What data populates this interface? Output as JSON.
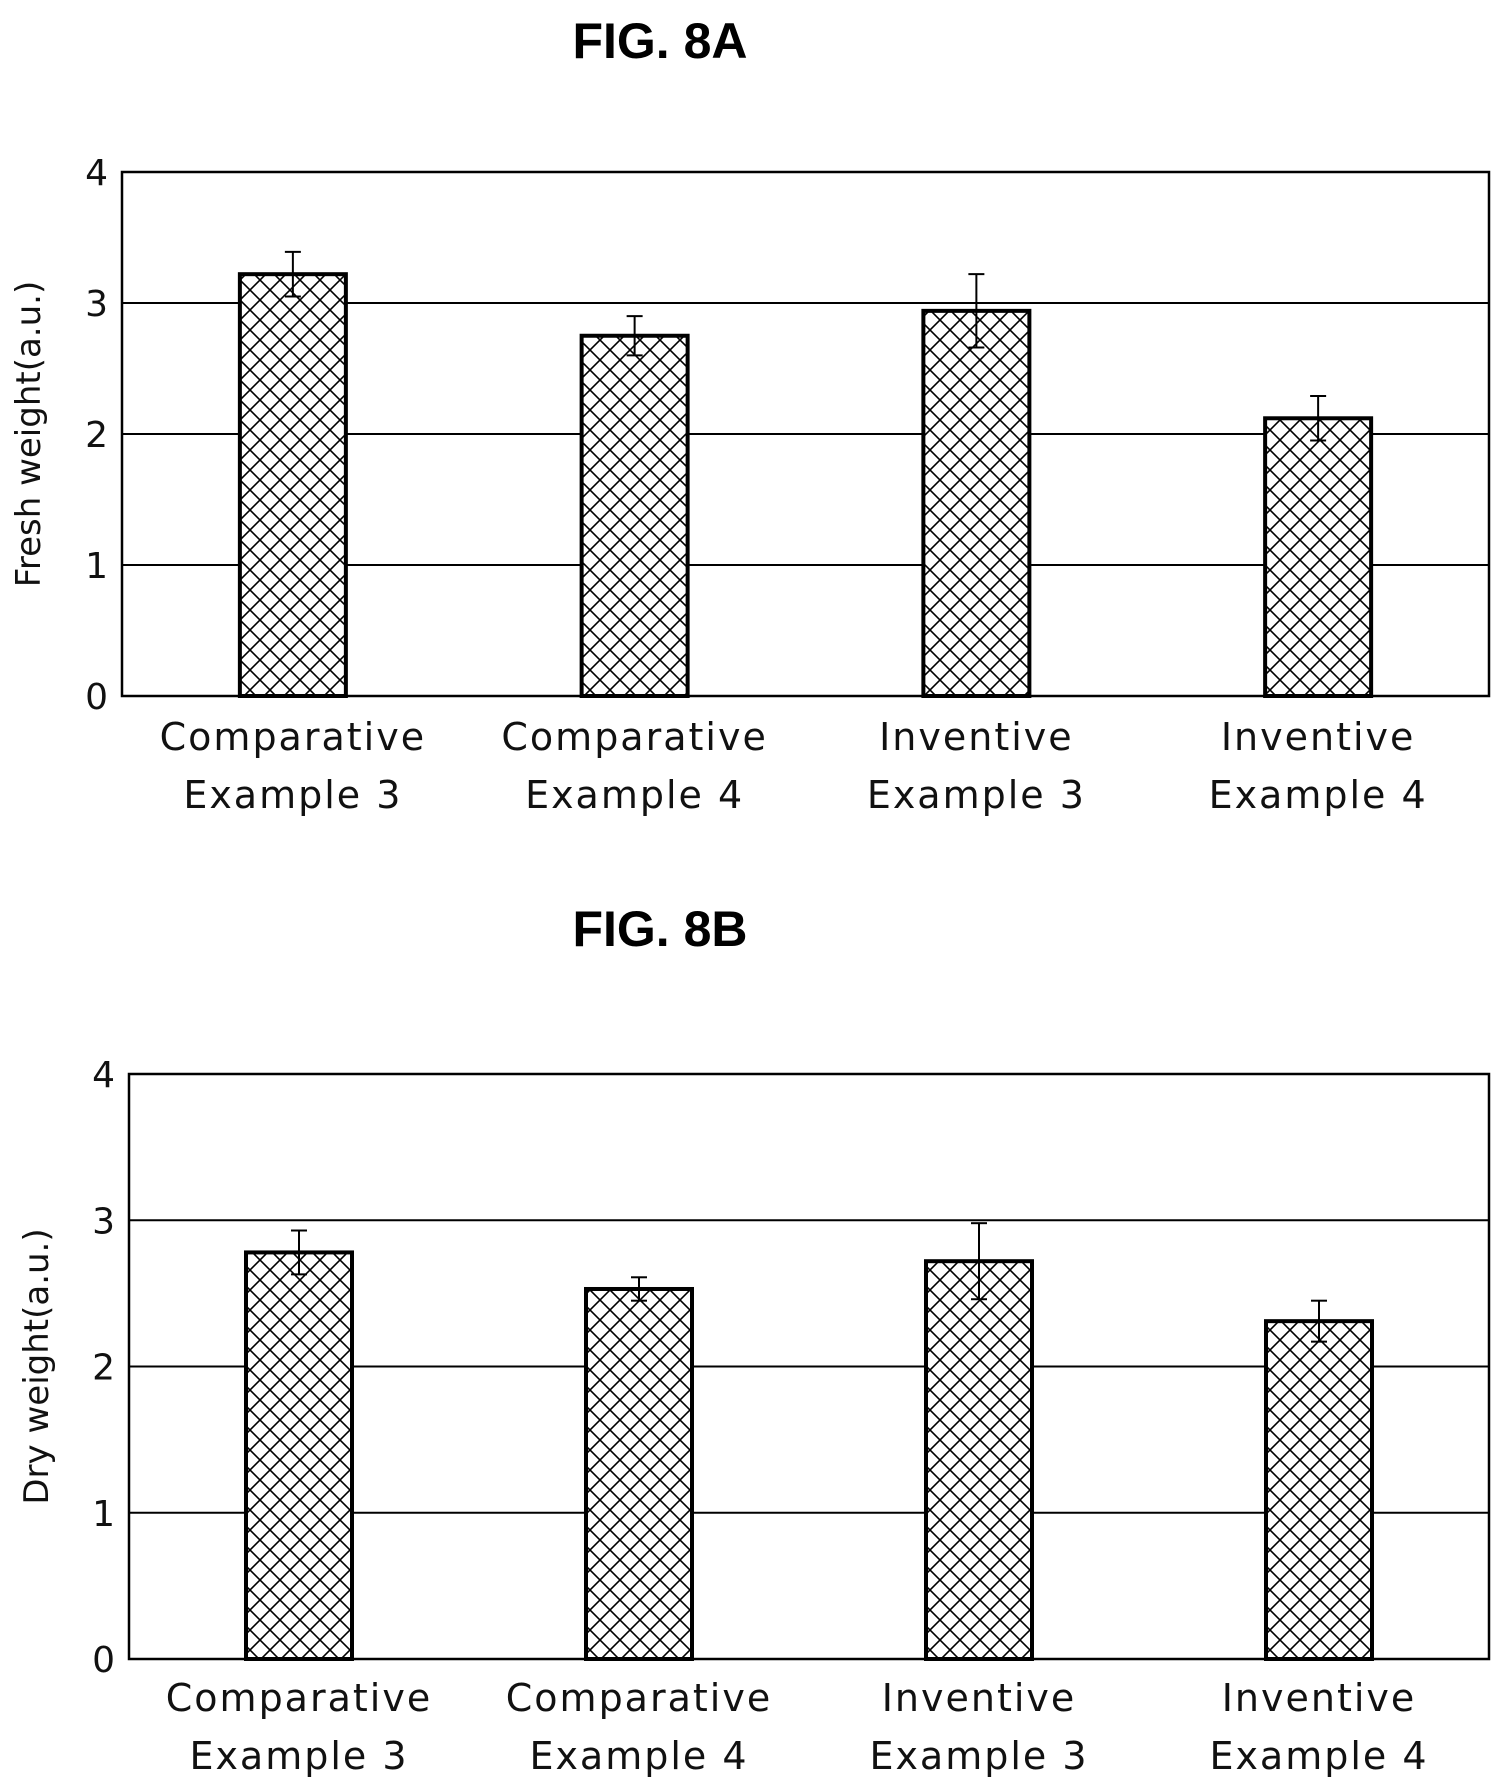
{
  "figures": {
    "a_title": "FIG. 8A",
    "b_title": "FIG. 8B"
  },
  "chart_data": [
    {
      "type": "bar",
      "title": "FIG. 8A",
      "ylabel": "Fresh weight(a.u.)",
      "xlabel": "",
      "categories": [
        [
          "Comparative",
          "Example 3"
        ],
        [
          "Comparative",
          "Example 4"
        ],
        [
          "Inventive",
          "Example 3"
        ],
        [
          "Inventive",
          "Example 4"
        ]
      ],
      "values": [
        3.22,
        2.75,
        2.94,
        2.12
      ],
      "errors": [
        0.17,
        0.15,
        0.28,
        0.17
      ],
      "ylim": [
        0,
        4
      ],
      "yticks": [
        "0",
        "1",
        "2",
        "3",
        "4"
      ],
      "grid": true,
      "legend": "none",
      "bar_fill": "crosshatch",
      "colors": {
        "bar_edge": "#000000",
        "hatch": "#000000",
        "grid": "#000000"
      }
    },
    {
      "type": "bar",
      "title": "FIG. 8B",
      "ylabel": "Dry weight(a.u.)",
      "xlabel": "",
      "categories": [
        [
          "Comparative",
          "Example 3"
        ],
        [
          "Comparative",
          "Example 4"
        ],
        [
          "Inventive",
          "Example 3"
        ],
        [
          "Inventive",
          "Example 4"
        ]
      ],
      "values": [
        2.78,
        2.53,
        2.72,
        2.31
      ],
      "errors": [
        0.15,
        0.08,
        0.26,
        0.14
      ],
      "ylim": [
        0,
        4
      ],
      "yticks": [
        "0",
        "1",
        "2",
        "3",
        "4"
      ],
      "grid": true,
      "legend": "none",
      "bar_fill": "crosshatch",
      "colors": {
        "bar_edge": "#000000",
        "hatch": "#000000",
        "grid": "#000000"
      }
    }
  ]
}
